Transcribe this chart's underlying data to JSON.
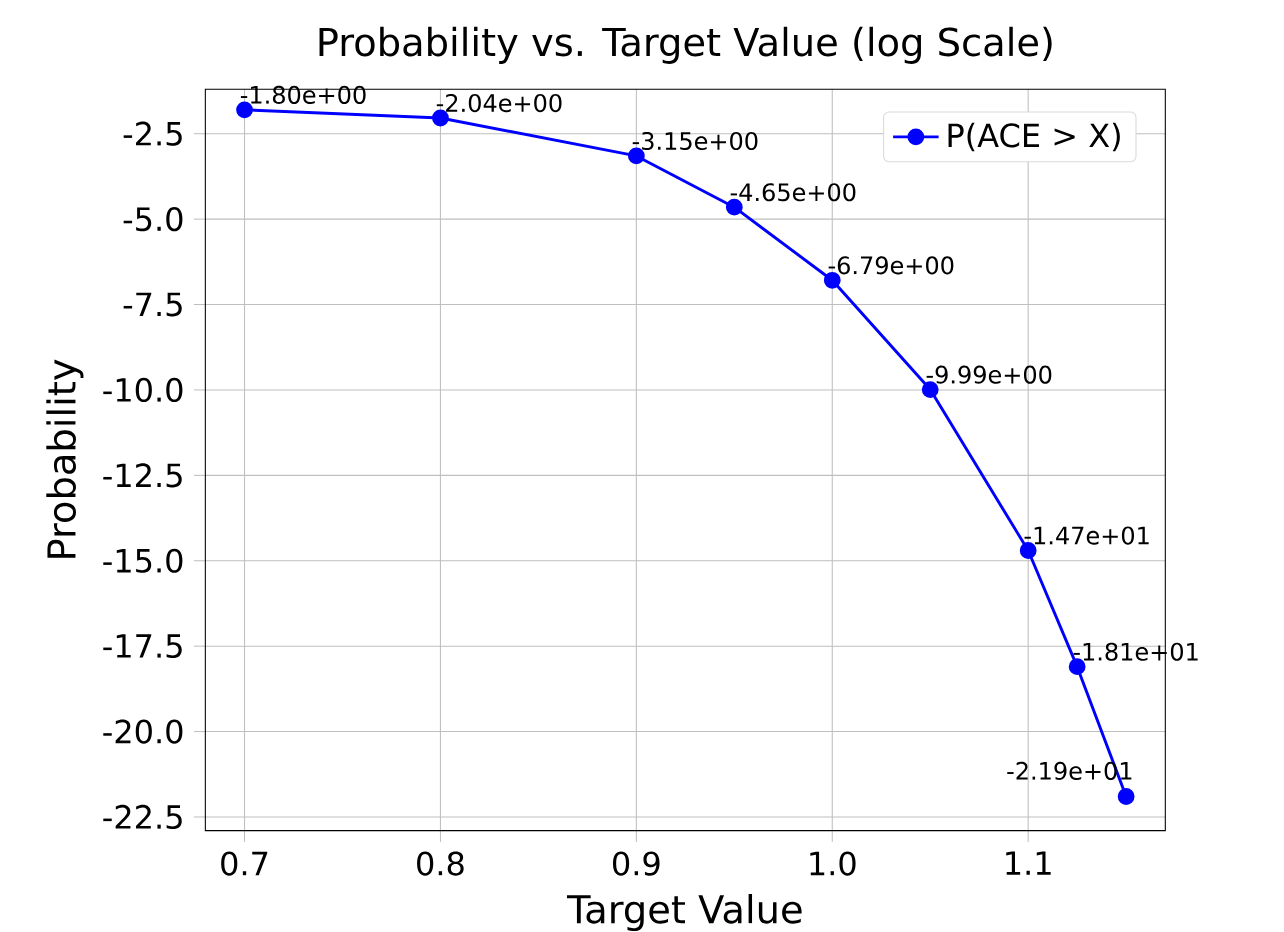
{
  "chart_data": {
    "type": "line",
    "title": "Probability vs. Target Value (log Scale)",
    "xlabel": "Target Value",
    "ylabel": "Probability",
    "x": [
      0.7,
      0.8,
      0.9,
      0.95,
      1.0,
      1.05,
      1.1,
      1.125,
      1.15
    ],
    "series": [
      {
        "name": "P(ACE > X)",
        "color": "#0000ff",
        "values": [
          -1.8,
          -2.04,
          -3.15,
          -4.65,
          -6.79,
          -9.99,
          -14.7,
          -18.1,
          -21.9
        ],
        "value_labels": [
          "-1.80e+00",
          "-2.04e+00",
          "-3.15e+00",
          "-4.65e+00",
          "-6.79e+00",
          "-9.99e+00",
          "-1.47e+01",
          "-1.81e+01",
          "-2.19e+01"
        ]
      }
    ],
    "xlim": [
      0.68,
      1.17
    ],
    "ylim": [
      -22.9,
      -1.2
    ],
    "xticks": [
      0.7,
      0.8,
      0.9,
      {
        "value": 1.0,
        "label": "1.0"
      },
      1.1
    ],
    "yticks": [
      -2.5,
      {
        "value": -5.0,
        "label": "-5.0"
      },
      -7.5,
      {
        "value": -10.0,
        "label": "-10.0"
      },
      -12.5,
      {
        "value": -15.0,
        "label": "-15.0"
      },
      -17.5,
      {
        "value": -20.0,
        "label": "-20.0"
      },
      -22.5
    ],
    "grid": true,
    "legend": "top right",
    "marker": "circle",
    "line_style": "solid"
  }
}
